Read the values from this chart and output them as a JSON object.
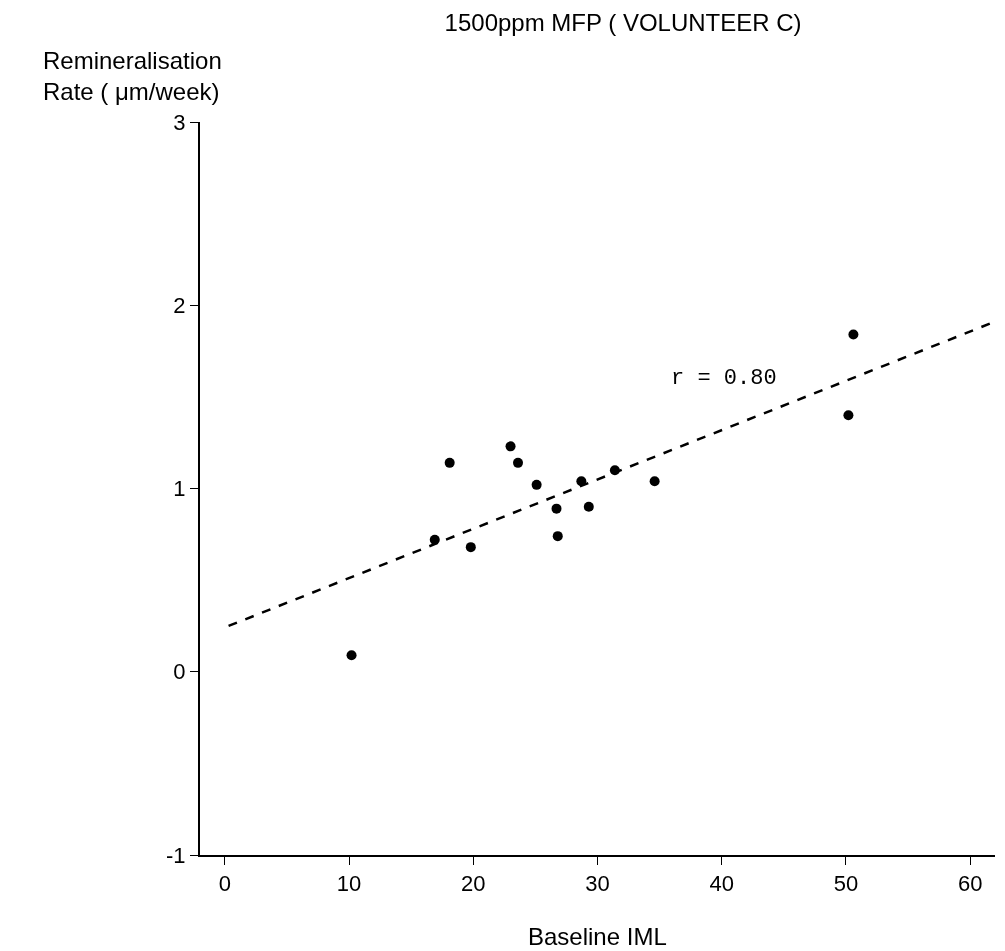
{
  "chart_data": {
    "type": "scatter",
    "title": "1500ppm MFP ( VOLUNTEER C)",
    "xlabel": "Baseline IML",
    "ylabel": "Remineralisation\nRate ( μm/week)",
    "x": [
      10.2,
      16.9,
      18.1,
      19.8,
      23.0,
      23.6,
      25.1,
      26.7,
      26.8,
      28.7,
      29.3,
      31.4,
      34.6,
      50.2,
      50.6
    ],
    "series": [
      {
        "color": "#000000",
        "marker": "circle",
        "values": [
          0.09,
          0.72,
          1.14,
          0.68,
          1.23,
          1.14,
          1.02,
          0.89,
          0.74,
          1.04,
          0.9,
          1.1,
          1.04,
          1.4,
          1.84
        ]
      },
      {
        "type": "line",
        "color": "#000000",
        "line_style": "dashed",
        "x": [
          0.3,
          61.6
        ],
        "values": [
          0.25,
          1.9
        ]
      }
    ],
    "annotations": [
      "r = 0.80"
    ],
    "xlim": [
      -2,
      62
    ],
    "xticks": [
      0,
      10,
      20,
      30,
      40,
      50,
      60
    ],
    "ylim": [
      -1,
      3
    ],
    "yticks": [
      -1,
      0,
      1,
      2,
      3
    ]
  }
}
